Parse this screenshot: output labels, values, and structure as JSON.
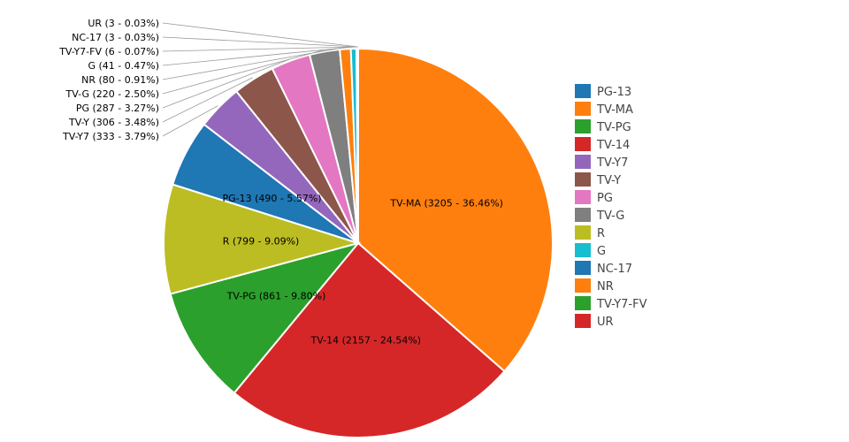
{
  "chart_data": {
    "type": "pie",
    "title": "",
    "legend_placement": "right",
    "sort": "clockwise-from-top",
    "slices": [
      {
        "label": "TV-MA",
        "value": 3205,
        "percent": "36.46%",
        "color": "#ff7f0e"
      },
      {
        "label": "TV-14",
        "value": 2157,
        "percent": "24.54%",
        "color": "#d62728"
      },
      {
        "label": "TV-PG",
        "value": 861,
        "percent": "9.80%",
        "color": "#2ca02c"
      },
      {
        "label": "R",
        "value": 799,
        "percent": "9.09%",
        "color": "#bcbd22"
      },
      {
        "label": "PG-13",
        "value": 490,
        "percent": "5.57%",
        "color": "#1f77b4"
      },
      {
        "label": "TV-Y7",
        "value": 333,
        "percent": "3.79%",
        "color": "#9467bd"
      },
      {
        "label": "TV-Y",
        "value": 306,
        "percent": "3.48%",
        "color": "#8c564b"
      },
      {
        "label": "PG",
        "value": 287,
        "percent": "3.27%",
        "color": "#e377c2"
      },
      {
        "label": "TV-G",
        "value": 220,
        "percent": "2.50%",
        "color": "#7f7f7f"
      },
      {
        "label": "NR",
        "value": 80,
        "percent": "0.91%",
        "color": "#ff7f0e"
      },
      {
        "label": "G",
        "value": 41,
        "percent": "0.47%",
        "color": "#17becf"
      },
      {
        "label": "TV-Y7-FV",
        "value": 6,
        "percent": "0.07%",
        "color": "#2ca02c"
      },
      {
        "label": "NC-17",
        "value": 3,
        "percent": "0.03%",
        "color": "#1f77b4"
      },
      {
        "label": "UR",
        "value": 3,
        "percent": "0.03%",
        "color": "#d62728"
      }
    ],
    "legend": [
      "PG-13",
      "TV-MA",
      "TV-PG",
      "TV-14",
      "TV-Y7",
      "TV-Y",
      "PG",
      "TV-G",
      "R",
      "G",
      "NC-17",
      "NR",
      "TV-Y7-FV",
      "UR"
    ],
    "legend_colors": [
      "#1f77b4",
      "#ff7f0e",
      "#2ca02c",
      "#d62728",
      "#9467bd",
      "#8c564b",
      "#e377c2",
      "#7f7f7f",
      "#bcbd22",
      "#17becf",
      "#1f77b4",
      "#ff7f0e",
      "#2ca02c",
      "#d62728"
    ]
  }
}
